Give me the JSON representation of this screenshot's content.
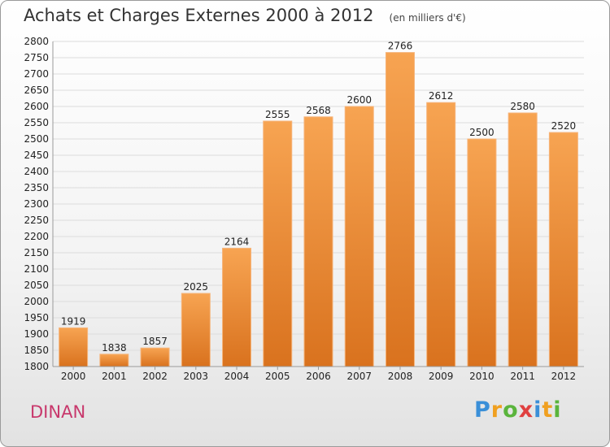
{
  "chart_data": {
    "type": "bar",
    "title": "Achats et Charges Externes 2000 à 2012",
    "subtitle": "(en milliers d'€)",
    "categories": [
      "2000",
      "2001",
      "2002",
      "2003",
      "2004",
      "2005",
      "2006",
      "2007",
      "2008",
      "2009",
      "2010",
      "2011",
      "2012"
    ],
    "values": [
      1919,
      1838,
      1857,
      2025,
      2164,
      2555,
      2568,
      2600,
      2766,
      2612,
      2500,
      2580,
      2520
    ],
    "ylim": [
      1800,
      2800
    ],
    "ytick_step": 50,
    "xlabel": "",
    "ylabel": "",
    "grid": true,
    "bar_color": "#f0903c"
  },
  "footer": {
    "city": "DINAN",
    "logo_letters": [
      {
        "char": "P",
        "color": "#3a8fd8"
      },
      {
        "char": "r",
        "color": "#f0a020"
      },
      {
        "char": "o",
        "color": "#5ab43c"
      },
      {
        "char": "x",
        "color": "#e04040"
      },
      {
        "char": "i",
        "color": "#3a8fd8"
      },
      {
        "char": "t",
        "color": "#f0a020"
      },
      {
        "char": "i",
        "color": "#5ab43c"
      }
    ]
  }
}
